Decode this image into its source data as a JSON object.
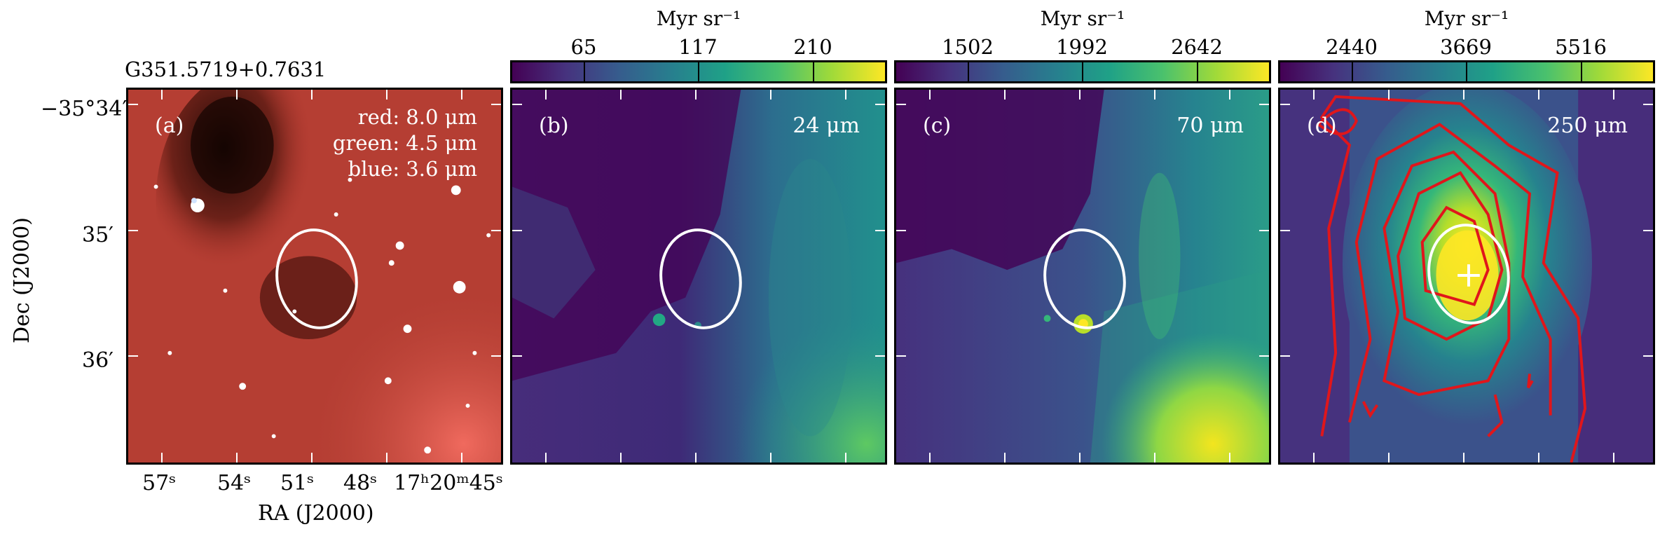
{
  "source_name": "G351.5719+0.7631",
  "panels": [
    {
      "label": "(a)",
      "lines": [
        "red: 8.0 μm",
        "green: 4.5 μm",
        "blue: 3.6 μm"
      ]
    },
    {
      "label": "(b)",
      "wavelength": "24 μm"
    },
    {
      "label": "(c)",
      "wavelength": "70 μm"
    },
    {
      "label": "(d)",
      "wavelength": "250 μm"
    }
  ],
  "colorbars": [
    {
      "title": "Myr sr⁻¹",
      "ticks": [
        "65",
        "117",
        "210"
      ]
    },
    {
      "title": "Myr sr⁻¹",
      "ticks": [
        "1502",
        "1992",
        "2642"
      ]
    },
    {
      "title": "Myr sr⁻¹",
      "ticks": [
        "2440",
        "3669",
        "5516"
      ]
    }
  ],
  "axes": {
    "ylabel": "Dec (J2000)",
    "xlabel": "RA (J2000)",
    "yticks": [
      "−35°34′",
      "35′",
      "36′"
    ],
    "xticks": [
      "57ˢ",
      "54ˢ",
      "51ˢ",
      "48ˢ",
      "17ʰ20ᵐ45ˢ"
    ]
  },
  "colors": {
    "viridis_dark": "#440154",
    "viridis_mid": "#21918c",
    "viridis_bright": "#fde725",
    "contour": "#e0161b",
    "ellipse": "#ffffff"
  }
}
